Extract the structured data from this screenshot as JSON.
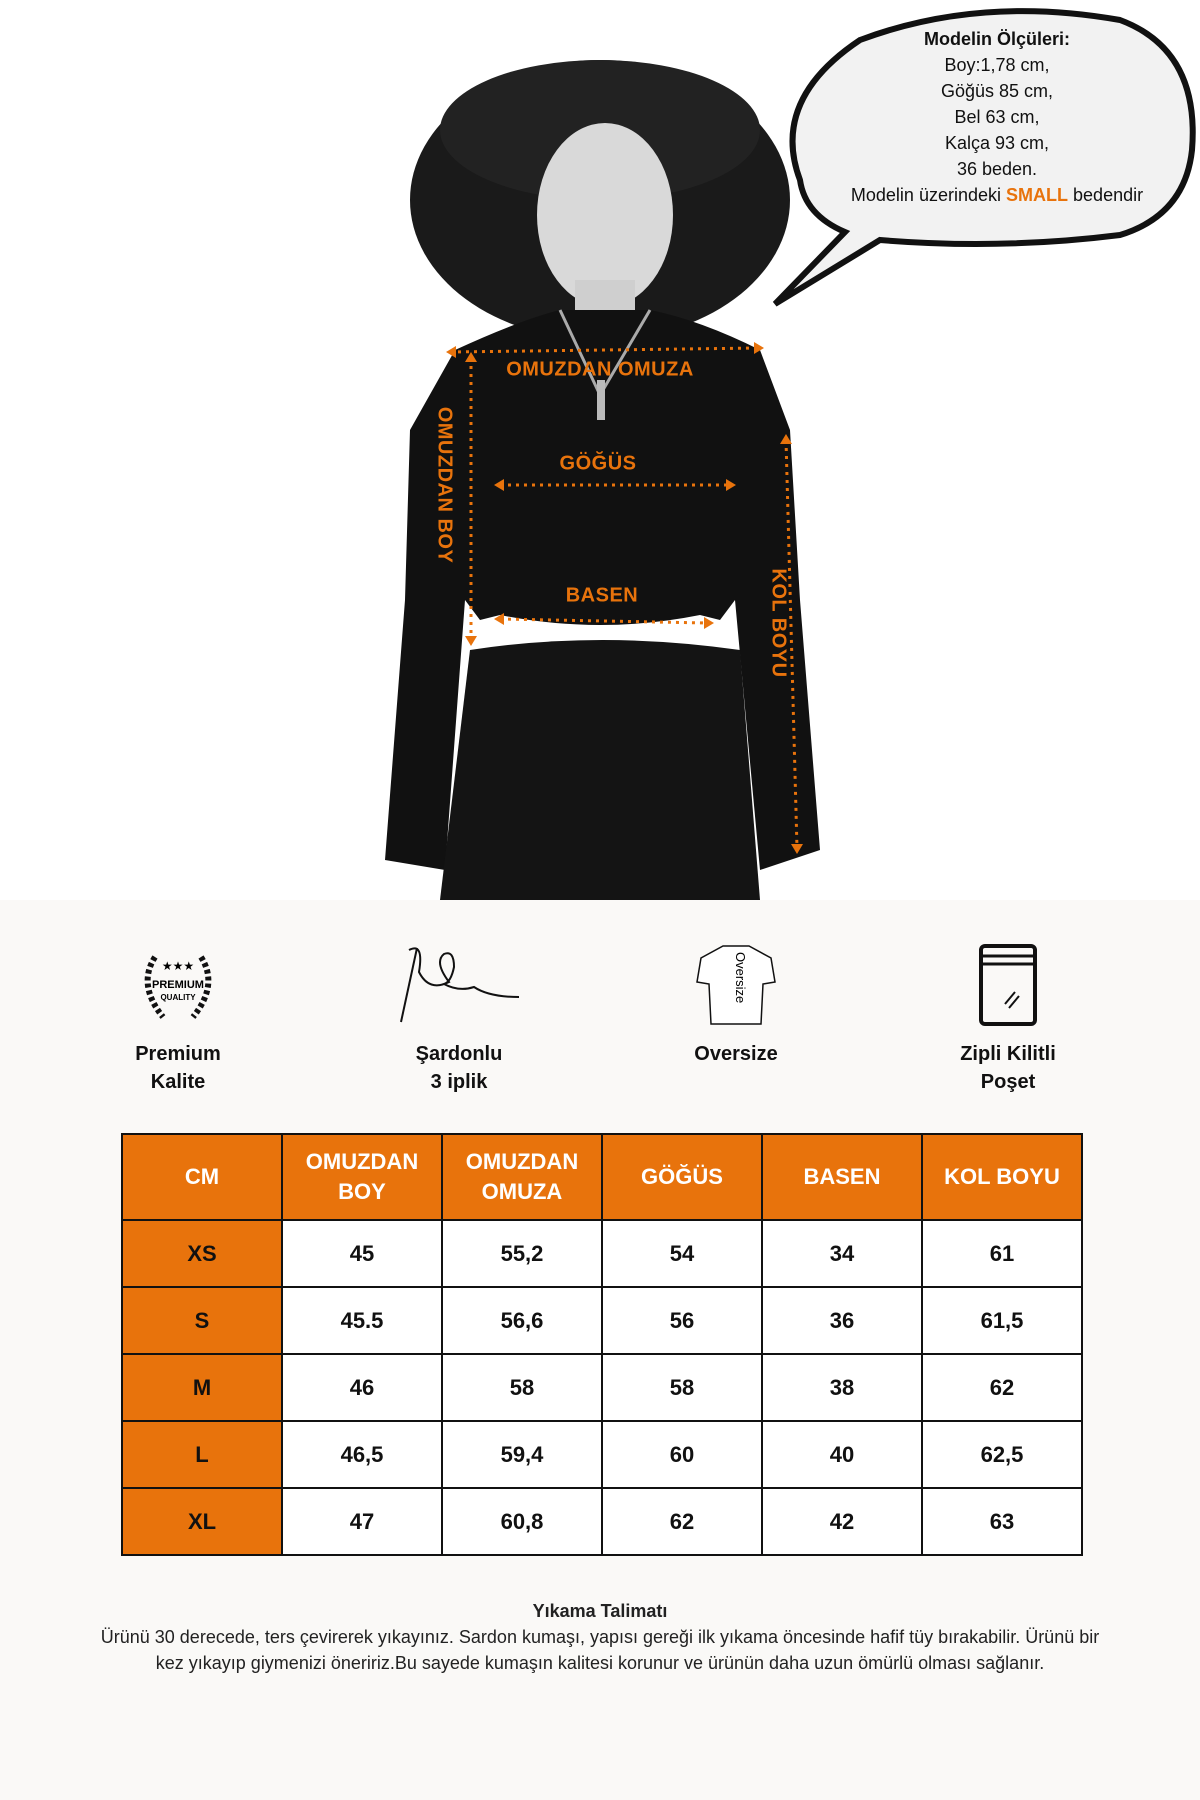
{
  "colors": {
    "accent": "#e8730c",
    "text": "#111111",
    "background": "#faf9f7"
  },
  "bubble": {
    "title": "Modelin Ölçüleri:",
    "lines": [
      "Boy:1,78 cm,",
      "Göğüs 85 cm,",
      "Bel 63 cm,",
      "Kalça 93 cm,",
      "36 beden."
    ],
    "size_prefix": "Modelin üzerindeki",
    "size_value": "SMALL",
    "size_suffix": "bedendir"
  },
  "measure_labels": {
    "shoulder": "OMUZDAN OMUZA",
    "chest": "GÖĞÜS",
    "hip": "BASEN",
    "length": "OMUZDAN BOY",
    "sleeve": "KOL BOYU"
  },
  "features": [
    {
      "icon": "premium-quality-badge-icon",
      "badge_text": [
        "PREMIUM",
        "QUALITY"
      ],
      "line1": "Premium",
      "line2": "Kalite"
    },
    {
      "icon": "needle-thread-icon",
      "line1": "Şardonlu",
      "line2": "3 iplik"
    },
    {
      "icon": "oversize-tshirt-icon",
      "badge_text": [
        "Oversize"
      ],
      "line1": "Oversize",
      "line2": ""
    },
    {
      "icon": "zip-bag-icon",
      "line1": "Zipli Kilitli",
      "line2": "Poşet"
    }
  ],
  "size_table": {
    "headers": [
      "CM",
      "OMUZDAN BOY",
      "OMUZDAN OMUZA",
      "GÖĞÜS",
      "BASEN",
      "KOL BOYU"
    ],
    "rows": [
      [
        "XS",
        "45",
        "55,2",
        "54",
        "34",
        "61"
      ],
      [
        "S",
        "45.5",
        "56,6",
        "56",
        "36",
        "61,5"
      ],
      [
        "M",
        "46",
        "58",
        "58",
        "38",
        "62"
      ],
      [
        "L",
        "46,5",
        "59,4",
        "60",
        "40",
        "62,5"
      ],
      [
        "XL",
        "47",
        "60,8",
        "62",
        "42",
        "63"
      ]
    ]
  },
  "wash": {
    "title": "Yıkama Talimatı",
    "text": "Ürünü 30 derecede, ters çevirerek yıkayınız. Sardon kumaşı, yapısı gereği ilk yıkama öncesinde hafif tüy bırakabilir. Ürünü bir kez yıkayıp giymenizi öneririz.Bu sayede kumaşın kalitesi korunur ve ürünün daha uzun ömürlü olması sağlanır."
  }
}
